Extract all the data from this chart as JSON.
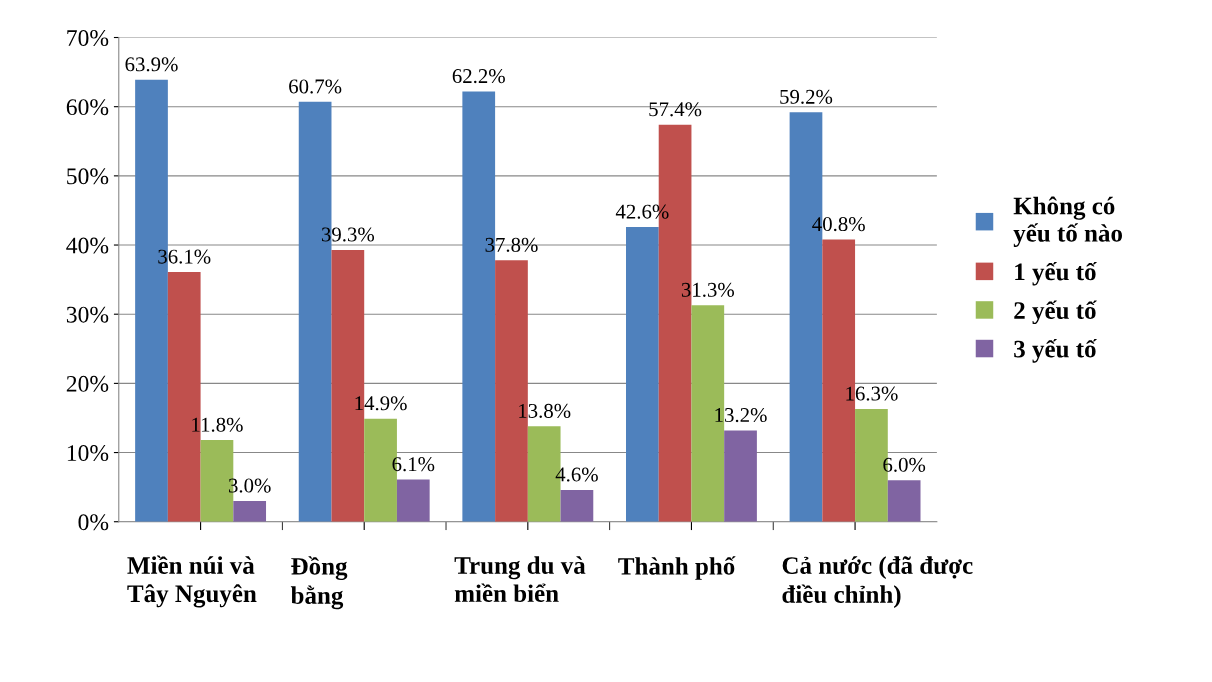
{
  "chart_data": {
    "type": "bar",
    "categories": [
      "Miền núi và\nTây Nguyên",
      "Đồng\nbằng",
      "Trung du và\nmiền biển",
      "Thành phố",
      "Cả nước (đã được\nđiều chỉnh)"
    ],
    "series": [
      {
        "name": "Không có\nyếu tố nào",
        "color": "#4f81bd",
        "values": [
          63.9,
          60.7,
          62.2,
          42.6,
          59.2
        ],
        "value_labels": [
          "63.9%",
          "60.7%",
          "62.2%",
          "42.6%",
          "59.2%"
        ]
      },
      {
        "name": "1 yếu tố",
        "color": "#c0504d",
        "values": [
          36.1,
          39.3,
          37.8,
          57.4,
          40.8
        ],
        "value_labels": [
          "36.1%",
          "39.3%",
          "37.8%",
          "57.4%",
          "40.8%"
        ]
      },
      {
        "name": "2 yếu tố",
        "color": "#9bbb59",
        "values": [
          11.8,
          14.9,
          13.8,
          31.3,
          16.3
        ],
        "value_labels": [
          "11.8%",
          "14.9%",
          "13.8%",
          "31.3%",
          "16.3%"
        ]
      },
      {
        "name": "3 yếu tố",
        "color": "#8064a2",
        "values": [
          3.0,
          6.1,
          4.6,
          13.2,
          6.0
        ],
        "value_labels": [
          "3.0%",
          "6.1%",
          "4.6%",
          "13.2%",
          "6.0%"
        ]
      }
    ],
    "ylim": [
      0,
      70
    ],
    "yticks": [
      {
        "value": 0,
        "label": "0%"
      },
      {
        "value": 10,
        "label": "10%"
      },
      {
        "value": 20,
        "label": "20%"
      },
      {
        "value": 30,
        "label": "30%"
      },
      {
        "value": 40,
        "label": "40%"
      },
      {
        "value": 50,
        "label": "50%"
      },
      {
        "value": 60,
        "label": "60%"
      },
      {
        "value": 70,
        "label": "70%"
      }
    ],
    "grid": "y",
    "legend": "right"
  }
}
